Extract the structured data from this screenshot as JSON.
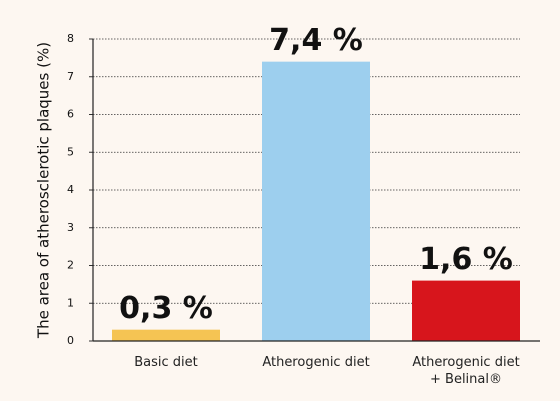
{
  "chart_data": {
    "type": "bar",
    "y_label": "The area of atherosclerotic plaques (%)",
    "categories": [
      "Basic diet",
      "Atherogenic diet",
      "Atherogenic diet\n+ Belinal®"
    ],
    "values": [
      0.3,
      7.4,
      1.6
    ],
    "value_labels": [
      "0,3 %",
      "7,4 %",
      "1,6 %"
    ],
    "colors": [
      "#f5c453",
      "#9dcfee",
      "#d7151c"
    ],
    "ylim": [
      0,
      8
    ],
    "yticks": [
      0,
      1,
      2,
      3,
      4,
      5,
      6,
      7,
      8
    ],
    "grid": true
  }
}
